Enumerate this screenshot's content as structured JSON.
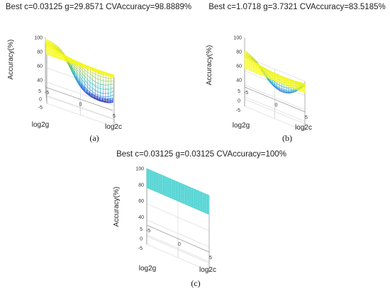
{
  "chart_data": [
    {
      "type": "surface3d",
      "title": "Best c=0.03125 g=29.8571 CVAccuracy=98.8889%",
      "xlabel": "log2c",
      "ylabel": "log2g",
      "zlabel": "Accuracy(%)",
      "xlim": [
        -5,
        5
      ],
      "ylim": [
        -5,
        5
      ],
      "zlim": [
        30,
        100
      ],
      "x_ticks": [
        "-5",
        "0",
        "5"
      ],
      "y_ticks": [
        "-5",
        "0",
        "5"
      ],
      "z_ticks": [
        "40",
        "60",
        "80",
        "100"
      ],
      "grid": true,
      "colormap": "parula",
      "surface": {
        "plateau": 98.9,
        "basin_min": 40
      },
      "caption": "(a)"
    },
    {
      "type": "surface3d",
      "title": "Best c=1.0718 g=3.7321 CVAccuracy=83.5185%",
      "xlabel": "log2c",
      "ylabel": "log2g",
      "zlabel": "Accuracy(%)",
      "xlim": [
        -5,
        5
      ],
      "ylim": [
        -5,
        5
      ],
      "zlim": [
        30,
        100
      ],
      "x_ticks": [
        "-5",
        "0",
        "5"
      ],
      "y_ticks": [
        "-5",
        "0",
        "5"
      ],
      "z_ticks": [
        "40",
        "60",
        "80",
        "100"
      ],
      "grid": true,
      "colormap": "parula",
      "surface": {
        "plateau": 83.5,
        "basin_min": 45
      },
      "caption": "(b)"
    },
    {
      "type": "surface3d",
      "title": "Best c=0.03125 g=0.03125 CVAccuracy=100%",
      "xlabel": "log2c",
      "ylabel": "log2g",
      "zlabel": "Accuracy(%)",
      "xlim": [
        -5,
        5
      ],
      "ylim": [
        -5,
        5
      ],
      "zlim": [
        30,
        100
      ],
      "x_ticks": [
        "-5",
        "0",
        "5"
      ],
      "y_ticks": [
        "-5",
        "0",
        "5"
      ],
      "z_ticks": [
        "40",
        "60",
        "80",
        "100"
      ],
      "grid": true,
      "colormap": "parula",
      "surface": {
        "plateau": 100,
        "basin_min": 100
      },
      "caption": "(c)"
    }
  ]
}
